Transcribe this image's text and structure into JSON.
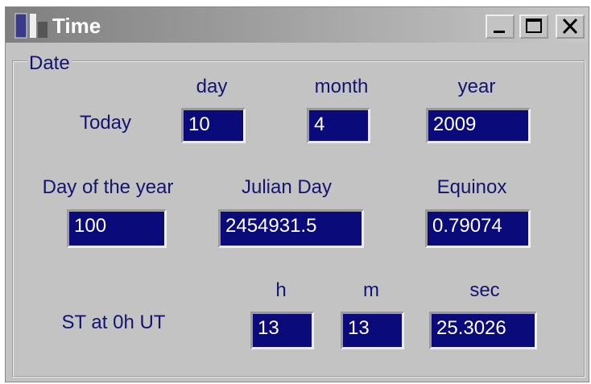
{
  "window": {
    "title": "Time"
  },
  "group": {
    "label": "Date"
  },
  "today": {
    "label": "Today",
    "fields": [
      {
        "label": "day",
        "value": "10"
      },
      {
        "label": "month",
        "value": "4"
      },
      {
        "label": "year",
        "value": "2009"
      }
    ]
  },
  "stats": {
    "fields": [
      {
        "label": "Day of the year",
        "value": "100"
      },
      {
        "label": "Julian Day",
        "value": "2454931.5"
      },
      {
        "label": "Equinox",
        "value": "0.79074"
      }
    ]
  },
  "sidereal": {
    "label": "ST at 0h UT",
    "fields": [
      {
        "label": "h",
        "value": "13"
      },
      {
        "label": "m",
        "value": "13"
      },
      {
        "label": "sec",
        "value": "25.3026"
      }
    ]
  }
}
